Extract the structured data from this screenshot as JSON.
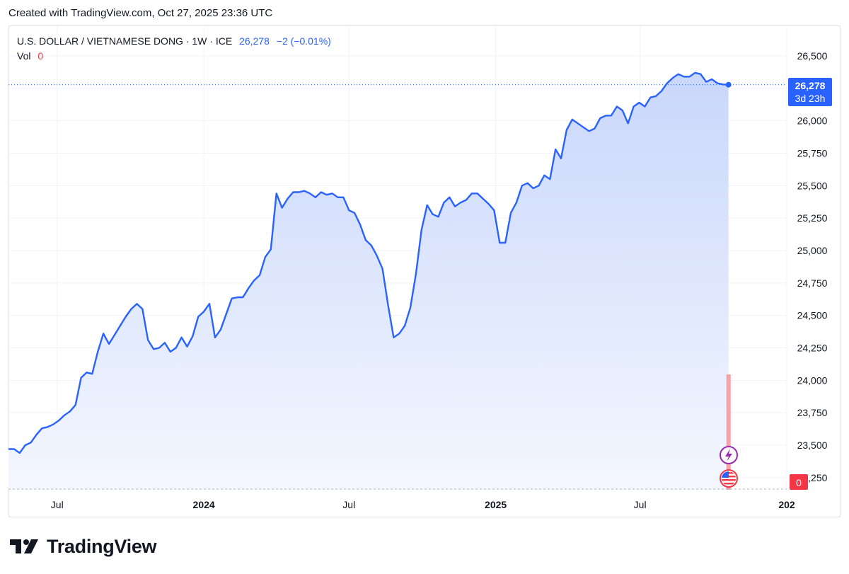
{
  "caption": "Created with TradingView.com, Oct 27, 2025 23:36 UTC",
  "legend": {
    "symbol": "U.S. DOLLAR / VIETNAMESE DONG · 1W · ICE",
    "price": "26,278",
    "change": "−2 (−0.01%)",
    "vol_label": "Vol",
    "vol_value": "0"
  },
  "price_label": {
    "value": "26,278",
    "countdown": "3d 23h"
  },
  "volume_badge": "0",
  "brand": "TradingView",
  "colors": {
    "line": "#2962ff",
    "fill_top": "#c9d7fb",
    "fill_bottom": "#f4f7fe",
    "volume": "#f7a1a8",
    "volume_badge": "#f23645",
    "grid": "#f0f3fa",
    "axis_text": "#131722",
    "price_badge": "#2962ff"
  },
  "icons": [
    "lightning-event-icon",
    "us-flag-event-icon",
    "tradingview-logo-icon"
  ],
  "chart_data": {
    "type": "area",
    "title": "U.S. DOLLAR / VIETNAMESE DONG · 1W · ICE",
    "xlabel": "",
    "ylabel": "",
    "ylim": [
      23250,
      26600
    ],
    "yticks": [
      23250,
      23500,
      23750,
      24000,
      24250,
      24500,
      24750,
      25000,
      25250,
      25500,
      25750,
      26000,
      26250,
      26500
    ],
    "ytick_labels": [
      "23,250",
      "23,500",
      "23,750",
      "24,000",
      "24,250",
      "24,500",
      "24,750",
      "25,000",
      "25,250",
      "25,500",
      "25,750",
      "26,000",
      "26,250",
      "26,500"
    ],
    "xticks": [
      {
        "label": "Jul",
        "date": "2023-07-01"
      },
      {
        "label": "2024",
        "date": "2024-01-01"
      },
      {
        "label": "Jul",
        "date": "2024-07-01"
      },
      {
        "label": "2025",
        "date": "2025-01-01"
      },
      {
        "label": "Jul",
        "date": "2025-07-01"
      },
      {
        "label": "202",
        "date": "2026-01-01"
      }
    ],
    "x_start": "2023-05-01",
    "x_end": "2026-01-01",
    "last_value": 26278,
    "series": [
      {
        "points": [
          [
            "2023-05-01",
            23470
          ],
          [
            "2023-05-08",
            23470
          ],
          [
            "2023-05-15",
            23440
          ],
          [
            "2023-05-22",
            23500
          ],
          [
            "2023-05-29",
            23520
          ],
          [
            "2023-06-05",
            23580
          ],
          [
            "2023-06-12",
            23630
          ],
          [
            "2023-06-19",
            23640
          ],
          [
            "2023-06-26",
            23660
          ],
          [
            "2023-07-03",
            23690
          ],
          [
            "2023-07-10",
            23730
          ],
          [
            "2023-07-17",
            23760
          ],
          [
            "2023-07-24",
            23810
          ],
          [
            "2023-07-31",
            24020
          ],
          [
            "2023-08-07",
            24060
          ],
          [
            "2023-08-14",
            24050
          ],
          [
            "2023-08-21",
            24220
          ],
          [
            "2023-08-28",
            24360
          ],
          [
            "2023-09-04",
            24280
          ],
          [
            "2023-09-11",
            24350
          ],
          [
            "2023-09-18",
            24420
          ],
          [
            "2023-09-25",
            24490
          ],
          [
            "2023-10-02",
            24550
          ],
          [
            "2023-10-09",
            24590
          ],
          [
            "2023-10-16",
            24550
          ],
          [
            "2023-10-23",
            24310
          ],
          [
            "2023-10-30",
            24240
          ],
          [
            "2023-11-06",
            24250
          ],
          [
            "2023-11-13",
            24290
          ],
          [
            "2023-11-20",
            24220
          ],
          [
            "2023-11-27",
            24250
          ],
          [
            "2023-12-04",
            24330
          ],
          [
            "2023-12-11",
            24260
          ],
          [
            "2023-12-18",
            24340
          ],
          [
            "2023-12-25",
            24490
          ],
          [
            "2024-01-01",
            24530
          ],
          [
            "2024-01-08",
            24590
          ],
          [
            "2024-01-15",
            24330
          ],
          [
            "2024-01-22",
            24390
          ],
          [
            "2024-01-29",
            24510
          ],
          [
            "2024-02-05",
            24630
          ],
          [
            "2024-02-12",
            24640
          ],
          [
            "2024-02-19",
            24640
          ],
          [
            "2024-02-26",
            24710
          ],
          [
            "2024-03-04",
            24770
          ],
          [
            "2024-03-11",
            24810
          ],
          [
            "2024-03-18",
            24950
          ],
          [
            "2024-03-25",
            25010
          ],
          [
            "2024-04-01",
            25440
          ],
          [
            "2024-04-08",
            25330
          ],
          [
            "2024-04-15",
            25400
          ],
          [
            "2024-04-22",
            25450
          ],
          [
            "2024-04-29",
            25450
          ],
          [
            "2024-05-06",
            25460
          ],
          [
            "2024-05-13",
            25440
          ],
          [
            "2024-05-20",
            25410
          ],
          [
            "2024-05-27",
            25450
          ],
          [
            "2024-06-03",
            25430
          ],
          [
            "2024-06-10",
            25440
          ],
          [
            "2024-06-17",
            25410
          ],
          [
            "2024-06-24",
            25410
          ],
          [
            "2024-07-01",
            25310
          ],
          [
            "2024-07-08",
            25290
          ],
          [
            "2024-07-15",
            25200
          ],
          [
            "2024-07-22",
            25080
          ],
          [
            "2024-07-29",
            25040
          ],
          [
            "2024-08-05",
            24960
          ],
          [
            "2024-08-12",
            24860
          ],
          [
            "2024-08-19",
            24580
          ],
          [
            "2024-08-26",
            24330
          ],
          [
            "2024-09-02",
            24360
          ],
          [
            "2024-09-09",
            24420
          ],
          [
            "2024-09-16",
            24560
          ],
          [
            "2024-09-23",
            24820
          ],
          [
            "2024-09-30",
            25160
          ],
          [
            "2024-10-07",
            25350
          ],
          [
            "2024-10-14",
            25280
          ],
          [
            "2024-10-21",
            25260
          ],
          [
            "2024-10-28",
            25370
          ],
          [
            "2024-11-04",
            25410
          ],
          [
            "2024-11-11",
            25340
          ],
          [
            "2024-11-18",
            25370
          ],
          [
            "2024-11-25",
            25390
          ],
          [
            "2024-12-02",
            25440
          ],
          [
            "2024-12-09",
            25440
          ],
          [
            "2024-12-16",
            25400
          ],
          [
            "2024-12-23",
            25360
          ],
          [
            "2024-12-30",
            25310
          ],
          [
            "2025-01-06",
            25060
          ],
          [
            "2025-01-13",
            25060
          ],
          [
            "2025-01-20",
            25290
          ],
          [
            "2025-01-27",
            25370
          ],
          [
            "2025-02-03",
            25500
          ],
          [
            "2025-02-10",
            25520
          ],
          [
            "2025-02-17",
            25480
          ],
          [
            "2025-02-24",
            25500
          ],
          [
            "2025-03-03",
            25580
          ],
          [
            "2025-03-10",
            25550
          ],
          [
            "2025-03-17",
            25780
          ],
          [
            "2025-03-24",
            25710
          ],
          [
            "2025-03-31",
            25930
          ],
          [
            "2025-04-07",
            26010
          ],
          [
            "2025-04-14",
            25980
          ],
          [
            "2025-04-21",
            25950
          ],
          [
            "2025-04-28",
            25920
          ],
          [
            "2025-05-05",
            25940
          ],
          [
            "2025-05-12",
            26020
          ],
          [
            "2025-05-19",
            26040
          ],
          [
            "2025-05-26",
            26040
          ],
          [
            "2025-06-02",
            26110
          ],
          [
            "2025-06-09",
            26080
          ],
          [
            "2025-06-16",
            25980
          ],
          [
            "2025-06-23",
            26110
          ],
          [
            "2025-06-30",
            26140
          ],
          [
            "2025-07-07",
            26110
          ],
          [
            "2025-07-14",
            26180
          ],
          [
            "2025-07-21",
            26190
          ],
          [
            "2025-07-28",
            26230
          ],
          [
            "2025-08-04",
            26290
          ],
          [
            "2025-08-11",
            26330
          ],
          [
            "2025-08-18",
            26360
          ],
          [
            "2025-08-25",
            26340
          ],
          [
            "2025-09-01",
            26340
          ],
          [
            "2025-09-08",
            26370
          ],
          [
            "2025-09-15",
            26360
          ],
          [
            "2025-09-22",
            26300
          ],
          [
            "2025-09-29",
            26320
          ],
          [
            "2025-10-06",
            26290
          ],
          [
            "2025-10-13",
            26280
          ],
          [
            "2025-10-20",
            26278
          ]
        ]
      }
    ],
    "volume": {
      "date": "2025-10-20",
      "value": 0
    }
  }
}
